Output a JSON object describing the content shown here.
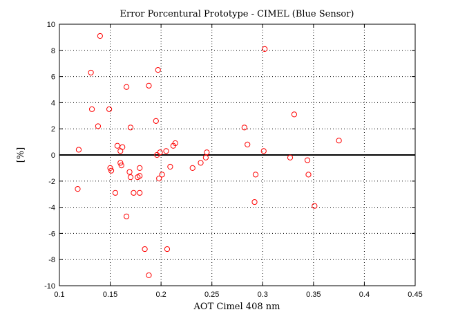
{
  "chart_data": {
    "type": "scatter",
    "title": "Error Porcentural Prototype - CIMEL (Blue Sensor)",
    "xlabel": "AOT Cimel 408 nm",
    "ylabel": "[%]",
    "xlim": [
      0.1,
      0.45
    ],
    "ylim": [
      -10,
      10
    ],
    "xticks": [
      "0.1",
      "0.15",
      "0.2",
      "0.25",
      "0.3",
      "0.35",
      "0.4",
      "0.45"
    ],
    "yticks": [
      "10",
      "8",
      "6",
      "4",
      "2",
      "0",
      "-2",
      "-4",
      "-6",
      "-8",
      "-10"
    ],
    "grid": true,
    "grid_style": "dotted",
    "zero_line": 0,
    "marker": "circle",
    "marker_color": "#ff0000",
    "series": [
      {
        "points": [
          [
            0.14,
            9.1
          ],
          [
            0.131,
            6.3
          ],
          [
            0.132,
            3.5
          ],
          [
            0.149,
            3.5
          ],
          [
            0.138,
            2.2
          ],
          [
            0.119,
            0.4
          ],
          [
            0.118,
            -2.6
          ],
          [
            0.15,
            -1.0
          ],
          [
            0.151,
            -1.2
          ],
          [
            0.155,
            -2.9
          ],
          [
            0.157,
            0.7
          ],
          [
            0.16,
            0.3
          ],
          [
            0.162,
            0.6
          ],
          [
            0.16,
            -0.6
          ],
          [
            0.161,
            -0.8
          ],
          [
            0.166,
            5.2
          ],
          [
            0.17,
            2.1
          ],
          [
            0.169,
            -1.3
          ],
          [
            0.17,
            -1.7
          ],
          [
            0.173,
            -2.9
          ],
          [
            0.177,
            -1.7
          ],
          [
            0.179,
            -1.6
          ],
          [
            0.179,
            -1.0
          ],
          [
            0.179,
            -2.9
          ],
          [
            0.166,
            -4.7
          ],
          [
            0.188,
            5.3
          ],
          [
            0.197,
            6.5
          ],
          [
            0.195,
            2.6
          ],
          [
            0.196,
            0.0
          ],
          [
            0.199,
            0.2
          ],
          [
            0.198,
            -1.8
          ],
          [
            0.201,
            -1.5
          ],
          [
            0.205,
            0.3
          ],
          [
            0.212,
            0.7
          ],
          [
            0.214,
            0.9
          ],
          [
            0.209,
            -0.9
          ],
          [
            0.184,
            -7.2
          ],
          [
            0.188,
            -9.2
          ],
          [
            0.206,
            -7.2
          ],
          [
            0.231,
            -1.0
          ],
          [
            0.239,
            -0.6
          ],
          [
            0.244,
            -0.2
          ],
          [
            0.245,
            0.2
          ],
          [
            0.282,
            2.1
          ],
          [
            0.285,
            0.8
          ],
          [
            0.293,
            -1.5
          ],
          [
            0.292,
            -3.6
          ],
          [
            0.301,
            0.3
          ],
          [
            0.302,
            8.1
          ],
          [
            0.327,
            -0.2
          ],
          [
            0.331,
            3.1
          ],
          [
            0.344,
            -0.4
          ],
          [
            0.345,
            -1.5
          ],
          [
            0.351,
            -3.9
          ],
          [
            0.375,
            1.1
          ]
        ]
      }
    ]
  }
}
